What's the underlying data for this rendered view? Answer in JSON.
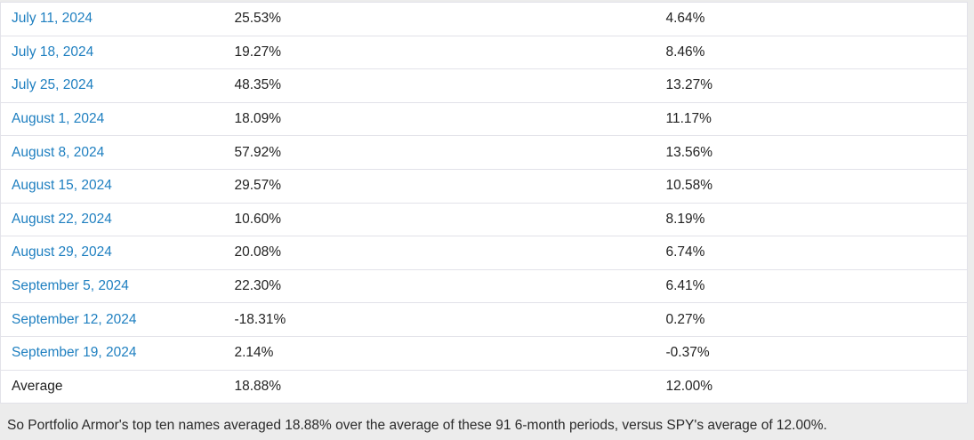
{
  "colors": {
    "page_background": "#ececec",
    "table_background": "#ffffff",
    "divider": "#e2e2e9",
    "link_blue": "#1e7fc0",
    "body_text": "#222222"
  },
  "table": {
    "rows": [
      {
        "date": "July 11, 2024",
        "top_ten_return": "25.53%",
        "spy_return": "4.64%",
        "is_link": true
      },
      {
        "date": "July 18, 2024",
        "top_ten_return": "19.27%",
        "spy_return": "8.46%",
        "is_link": true
      },
      {
        "date": "July 25, 2024",
        "top_ten_return": "48.35%",
        "spy_return": "13.27%",
        "is_link": true
      },
      {
        "date": "August 1, 2024",
        "top_ten_return": "18.09%",
        "spy_return": "11.17%",
        "is_link": true
      },
      {
        "date": "August 8, 2024",
        "top_ten_return": "57.92%",
        "spy_return": "13.56%",
        "is_link": true
      },
      {
        "date": "August 15, 2024",
        "top_ten_return": "29.57%",
        "spy_return": "10.58%",
        "is_link": true
      },
      {
        "date": "August 22, 2024",
        "top_ten_return": "10.60%",
        "spy_return": "8.19%",
        "is_link": true
      },
      {
        "date": "August 29, 2024",
        "top_ten_return": "20.08%",
        "spy_return": "6.74%",
        "is_link": true
      },
      {
        "date": "September 5, 2024",
        "top_ten_return": "22.30%",
        "spy_return": "6.41%",
        "is_link": true
      },
      {
        "date": "September 12, 2024",
        "top_ten_return": "-18.31%",
        "spy_return": "0.27%",
        "is_link": true
      },
      {
        "date": "September 19, 2024",
        "top_ten_return": "2.14%",
        "spy_return": "-0.37%",
        "is_link": true
      },
      {
        "date": "Average",
        "top_ten_return": "18.88%",
        "spy_return": "12.00%",
        "is_link": false
      }
    ]
  },
  "footer": {
    "text": "So Portfolio Armor's top ten names averaged 18.88% over the average of these 91 6-month periods, versus SPY's average of 12.00%."
  }
}
